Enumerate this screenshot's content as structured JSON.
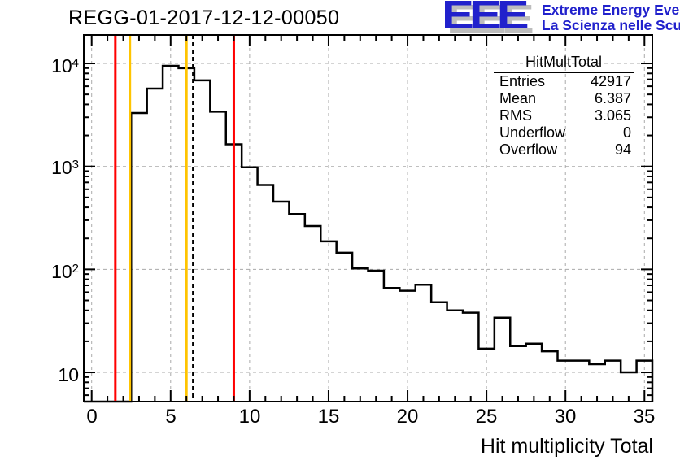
{
  "title": "REGG-01-2017-12-12-00050",
  "logo": {
    "letters": "EEE",
    "line1": "Extreme Energy Events",
    "line2": "La Scienza nelle Scuole"
  },
  "stats": {
    "title": "HitMultTotal",
    "rows": [
      {
        "label": "Entries",
        "value": "42917"
      },
      {
        "label": "Mean",
        "value": "6.387"
      },
      {
        "label": "RMS",
        "value": "3.065"
      },
      {
        "label": "Underflow",
        "value": "0"
      },
      {
        "label": "Overflow",
        "value": "94"
      }
    ]
  },
  "x_axis": {
    "title": "Hit multiplicity Total",
    "tick_labels": [
      "0",
      "5",
      "10",
      "15",
      "20",
      "25",
      "30",
      "35"
    ]
  },
  "y_axis": {
    "labels": [
      {
        "base": "10",
        "exp": "4"
      },
      {
        "base": "10",
        "exp": "3"
      },
      {
        "base": "10",
        "exp": "2"
      },
      {
        "base": "10",
        "exp": ""
      }
    ]
  },
  "colors": {
    "histogram": "#000000",
    "frame": "#000000",
    "grid": "#aaaaaa",
    "marker_red": "#ff0000",
    "marker_yellow": "#ffc400",
    "mean_line": "#000000",
    "logo_blue": "#2121cc",
    "logo_shadow": "#bdbdbd"
  },
  "chart_data": {
    "type": "bar",
    "style": "step-histogram",
    "title": "REGG-01-2017-12-12-00050",
    "xlabel": "Hit multiplicity Total",
    "ylabel": "",
    "ylog": true,
    "grid": true,
    "xlim": [
      -0.5,
      35.5
    ],
    "ylim": [
      5.2,
      18900
    ],
    "bin_width": 1,
    "categories": [
      0,
      1,
      2,
      3,
      4,
      5,
      6,
      7,
      8,
      9,
      10,
      11,
      12,
      13,
      14,
      15,
      16,
      17,
      18,
      19,
      20,
      21,
      22,
      23,
      24,
      25,
      26,
      27,
      28,
      29,
      30,
      31,
      32,
      33,
      34,
      35
    ],
    "values": [
      0,
      0,
      0,
      3300,
      5700,
      9470,
      9000,
      6850,
      3400,
      1640,
      980,
      660,
      455,
      345,
      264,
      187,
      145,
      102,
      97,
      66,
      62,
      71,
      48,
      40,
      38,
      17,
      34,
      18,
      19,
      16,
      13,
      13,
      12,
      13,
      10,
      13
    ],
    "x_major_ticks": [
      0,
      5,
      10,
      15,
      20,
      25,
      30,
      35
    ],
    "y_major_ticks": [
      10,
      100,
      1000,
      10000
    ],
    "marker_lines": [
      {
        "x": 1.5,
        "color": "#ff0000",
        "style": "solid",
        "name": "red-limit-low"
      },
      {
        "x": 2.42,
        "color": "#ffc400",
        "style": "solid",
        "name": "yellow-limit-low"
      },
      {
        "x": 6.0,
        "color": "#ffc400",
        "style": "solid",
        "name": "yellow-limit-high"
      },
      {
        "x": 6.42,
        "color": "#000000",
        "style": "dashed",
        "name": "mean-line"
      },
      {
        "x": 9.0,
        "color": "#ff0000",
        "style": "solid",
        "name": "red-limit-high"
      }
    ],
    "stats": {
      "entries": 42917,
      "mean": 6.387,
      "rms": 3.065,
      "underflow": 0,
      "overflow": 94
    }
  }
}
